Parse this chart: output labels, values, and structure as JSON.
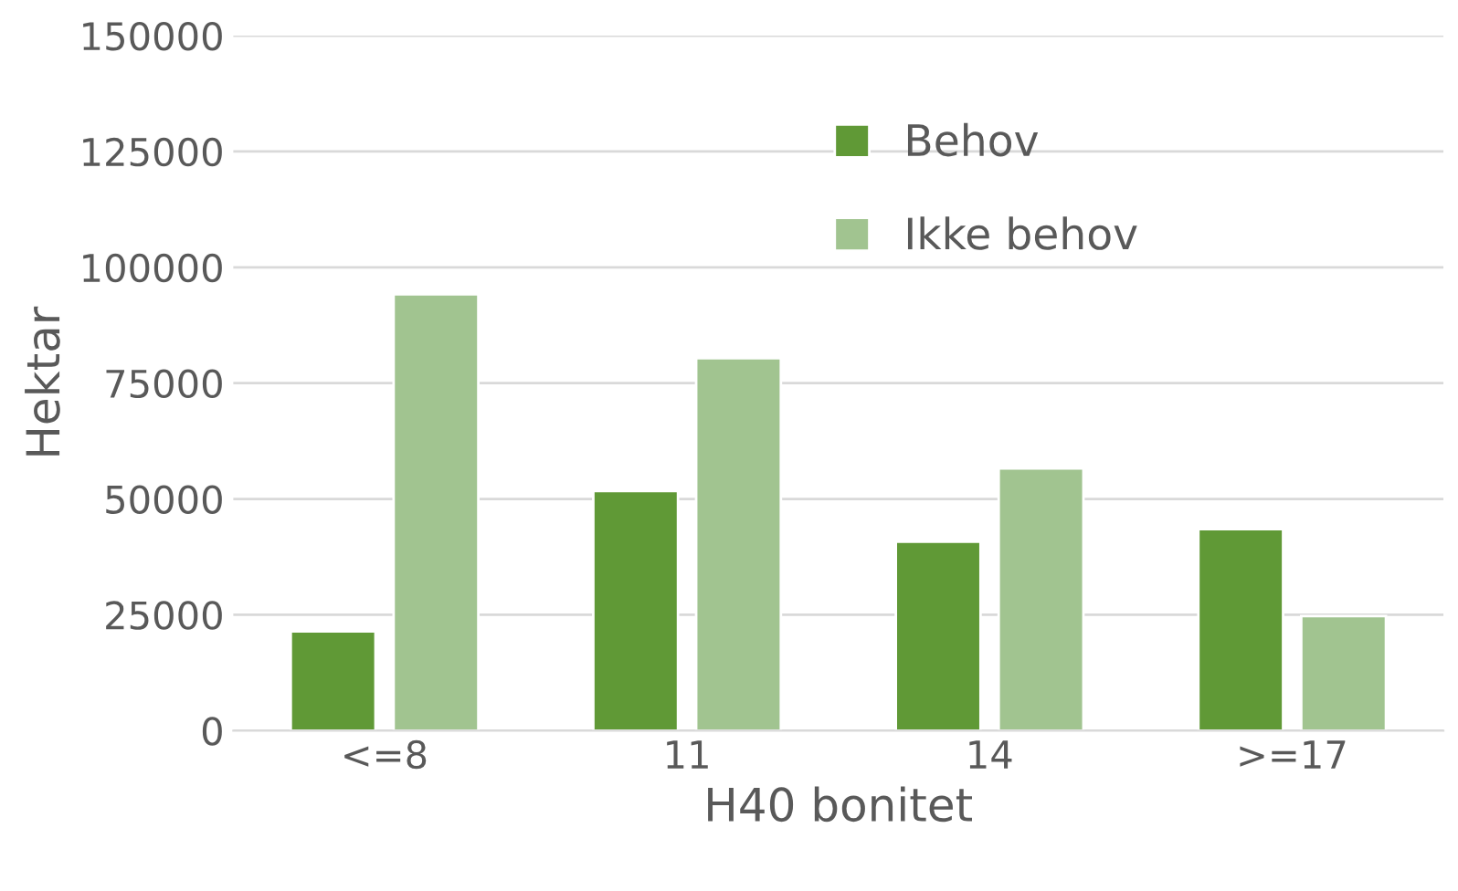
{
  "chart_data": {
    "type": "bar",
    "xlabel": "H40 bonitet",
    "ylabel": "Hektar",
    "categories": [
      "<=8",
      "11",
      "14",
      ">=17"
    ],
    "series": [
      {
        "name": "Behov",
        "color": "#609936",
        "values": [
          21400,
          51700,
          40800,
          43500
        ]
      },
      {
        "name": "Ikke behov",
        "color": "#a1c490",
        "values": [
          94200,
          80400,
          56600,
          24700
        ]
      }
    ],
    "ylim": [
      0,
      150000
    ],
    "yticks": [
      0,
      25000,
      50000,
      75000,
      100000,
      125000,
      150000
    ],
    "grid": "y",
    "legend": "top right"
  }
}
